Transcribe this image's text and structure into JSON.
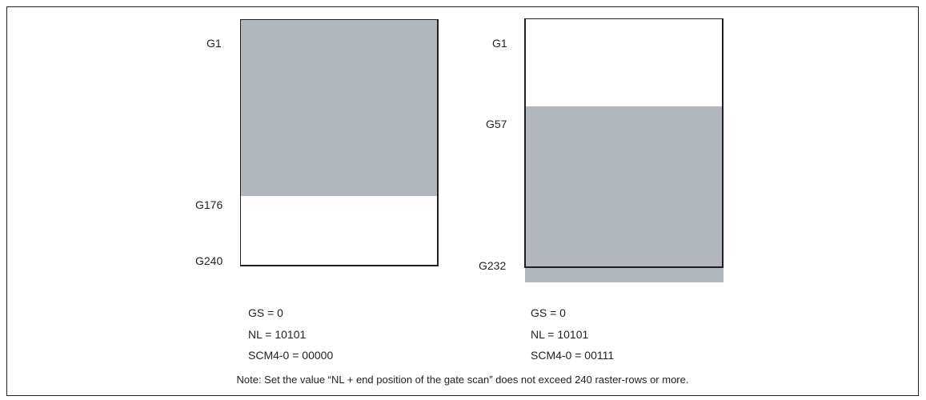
{
  "colors": {
    "shade": "#b2b6bd",
    "line": "#231f20",
    "background": "#ffffff"
  },
  "panels": [
    {
      "gate_labels": [
        "G1",
        "G176",
        "G240"
      ],
      "params": [
        "GS = 0",
        "NL = 10101",
        "SCM4-0 = 00000"
      ]
    },
    {
      "gate_labels": [
        "G1",
        "G57",
        "G232"
      ],
      "params": [
        "GS = 0",
        "NL = 10101",
        "SCM4-0 = 00111"
      ]
    }
  ],
  "note": "Note: Set the value “NL + end position of the gate scan” does not exceed 240 raster-rows or more."
}
